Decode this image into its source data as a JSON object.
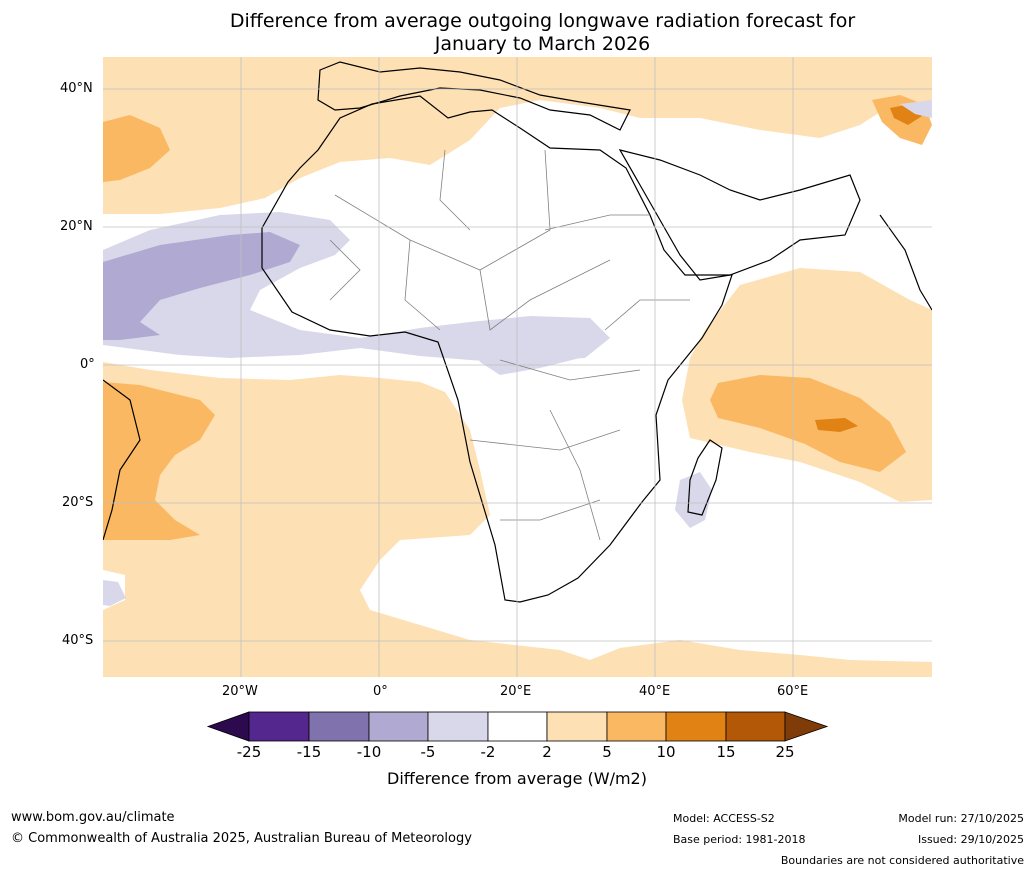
{
  "title": {
    "line1": "Difference from average outgoing longwave radiation forecast for",
    "line2": "January to March 2026"
  },
  "map": {
    "region": "Africa",
    "lat_labels": [
      "40°N",
      "20°N",
      "0°",
      "20°S",
      "40°S"
    ],
    "lon_labels": [
      "20°W",
      "0°",
      "20°E",
      "40°E",
      "60°E"
    ]
  },
  "legend": {
    "title": "Difference from average (W/m2)",
    "tick_labels": [
      "-25",
      "-15",
      "-10",
      "-5",
      "-2",
      "2",
      "5",
      "10",
      "15",
      "25"
    ],
    "colors": [
      "#2d0a4e",
      "#54278f",
      "#8072ac",
      "#b0a9d1",
      "#d8d8ea",
      "#ffffff",
      "#fde0b4",
      "#fbb862",
      "#e08214",
      "#b35806",
      "#7f3b08"
    ]
  },
  "footer": {
    "url": "www.bom.gov.au/climate",
    "copyright": "© Commonwealth of Australia 2025, Australian Bureau of Meteorology",
    "model": "Model: ACCESS-S2",
    "base_period": "Base period: 1981-2018",
    "model_run": "Model run: 27/10/2025",
    "issued": "Issued: 29/10/2025",
    "disclaimer": "Boundaries are not considered authoritative"
  }
}
